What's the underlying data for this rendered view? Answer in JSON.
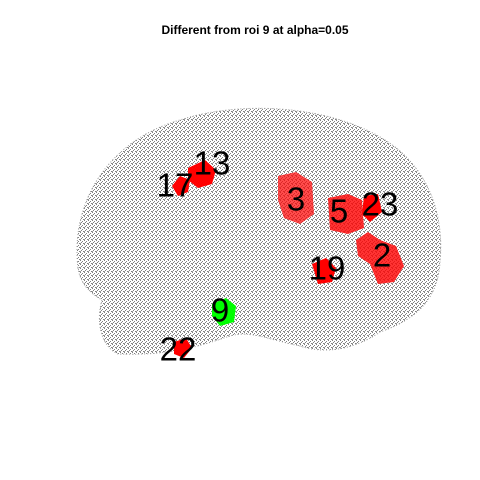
{
  "title": "Different from roi 9 at alpha=0.05",
  "rois": [
    {
      "label": "13",
      "color": "#ff0000"
    },
    {
      "label": "17",
      "color": "#ff0000"
    },
    {
      "label": "3",
      "color": "#ff0000"
    },
    {
      "label": "5",
      "color": "#ff0000"
    },
    {
      "label": "23",
      "color": "#ff0000"
    },
    {
      "label": "2",
      "color": "#ff0000"
    },
    {
      "label": "19",
      "color": "#ff0000"
    },
    {
      "label": "9",
      "color": "#00ff00"
    },
    {
      "label": "22",
      "color": "#ff0000"
    }
  ]
}
